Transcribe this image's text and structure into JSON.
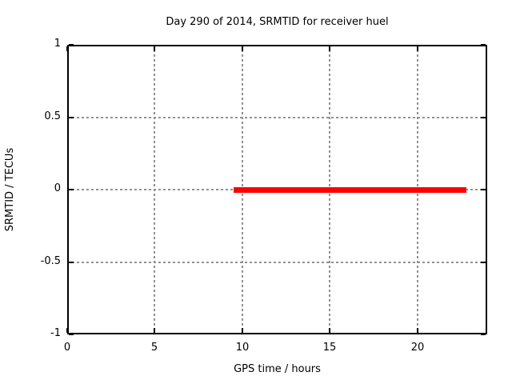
{
  "chart_data": {
    "type": "line",
    "title": "Day 290 of 2014, SRMTID for receiver huel",
    "xlabel": "GPS time / hours",
    "ylabel": "SRMTID / TECUs",
    "xlim": [
      0,
      24
    ],
    "ylim": [
      -1,
      1
    ],
    "xticks": [
      0,
      5,
      10,
      15,
      20
    ],
    "yticks": [
      1,
      0.5,
      0,
      -0.5,
      -1
    ],
    "grid": true,
    "legend": "none",
    "series": [
      {
        "name": "SRMTID",
        "color": "#ff0000",
        "linewidth": 7,
        "x": [
          9.5,
          22.8
        ],
        "y": [
          0,
          0
        ]
      }
    ]
  },
  "colors": {
    "background": "#ffffff",
    "border": "#000000",
    "grid": "#909090",
    "text": "#000000"
  }
}
